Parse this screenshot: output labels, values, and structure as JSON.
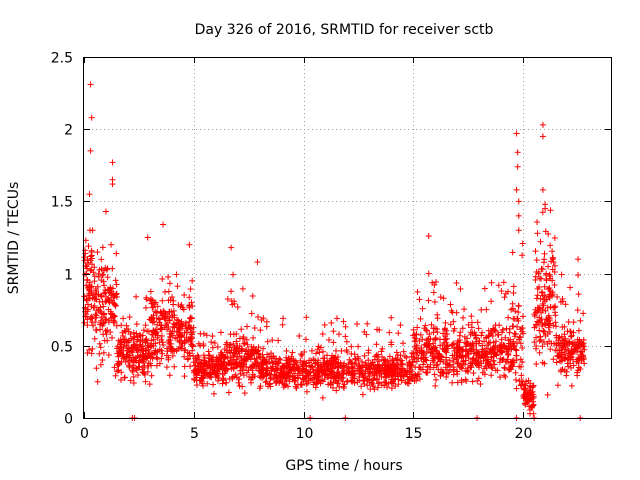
{
  "chart_data": {
    "type": "scatter",
    "title": "Day 326 of 2016, SRMTID for receiver sctb",
    "xlabel": "GPS time / hours",
    "ylabel": "SRMTID / TECUs",
    "xlim": [
      0,
      24
    ],
    "ylim": [
      0,
      2.5
    ],
    "grid": true,
    "marker": "+",
    "color": "#ff0000",
    "xticks": [
      0,
      5,
      10,
      15,
      20
    ],
    "xtick_labels": [
      "0",
      "5",
      "10",
      "15",
      "20"
    ],
    "yticks": [
      0,
      0.5,
      1,
      1.5,
      2,
      2.5
    ],
    "ytick_labels": [
      "0",
      "0.5",
      "1",
      "1.5",
      "2",
      "2.5"
    ],
    "n_points_approx": 2200,
    "x_range_of_data": [
      0.0,
      22.8
    ],
    "segments": [
      {
        "x0": 0.0,
        "x1": 0.5,
        "median": 0.9,
        "spread": 0.35,
        "max": 1.3,
        "density": 120
      },
      {
        "x0": 0.5,
        "x1": 1.5,
        "median": 0.75,
        "spread": 0.3,
        "max": 1.2,
        "density": 100
      },
      {
        "x0": 1.5,
        "x1": 3.0,
        "median": 0.45,
        "spread": 0.15,
        "max": 0.9,
        "density": 100
      },
      {
        "x0": 3.0,
        "x1": 5.0,
        "median": 0.6,
        "spread": 0.2,
        "max": 1.0,
        "density": 100
      },
      {
        "x0": 5.0,
        "x1": 6.5,
        "median": 0.35,
        "spread": 0.1,
        "max": 0.6,
        "density": 100
      },
      {
        "x0": 6.5,
        "x1": 8.0,
        "median": 0.4,
        "spread": 0.15,
        "max": 1.0,
        "density": 90
      },
      {
        "x0": 8.0,
        "x1": 15.0,
        "median": 0.33,
        "spread": 0.1,
        "max": 0.7,
        "density": 85
      },
      {
        "x0": 15.0,
        "x1": 19.5,
        "median": 0.45,
        "spread": 0.15,
        "max": 0.95,
        "density": 90
      },
      {
        "x0": 19.5,
        "x1": 20.0,
        "median": 0.55,
        "spread": 0.3,
        "max": 1.5,
        "density": 100
      },
      {
        "x0": 20.0,
        "x1": 20.5,
        "median": 0.15,
        "spread": 0.1,
        "max": 0.4,
        "density": 90
      },
      {
        "x0": 20.5,
        "x1": 21.5,
        "median": 0.8,
        "spread": 0.35,
        "max": 1.5,
        "density": 110
      },
      {
        "x0": 21.5,
        "x1": 22.8,
        "median": 0.45,
        "spread": 0.15,
        "max": 1.0,
        "density": 90
      }
    ],
    "spikes": [
      {
        "x": 0.3,
        "y": 2.31
      },
      {
        "x": 0.35,
        "y": 2.08
      },
      {
        "x": 0.3,
        "y": 1.85
      },
      {
        "x": 0.25,
        "y": 1.55
      },
      {
        "x": 1.0,
        "y": 1.43
      },
      {
        "x": 1.3,
        "y": 1.77
      },
      {
        "x": 1.3,
        "y": 1.65
      },
      {
        "x": 1.3,
        "y": 1.62
      },
      {
        "x": 3.6,
        "y": 1.34
      },
      {
        "x": 2.9,
        "y": 1.25
      },
      {
        "x": 4.8,
        "y": 1.2
      },
      {
        "x": 6.7,
        "y": 1.18
      },
      {
        "x": 7.9,
        "y": 1.08
      },
      {
        "x": 15.7,
        "y": 1.26
      },
      {
        "x": 15.7,
        "y": 1.0
      },
      {
        "x": 19.7,
        "y": 1.97
      },
      {
        "x": 19.75,
        "y": 1.84
      },
      {
        "x": 19.75,
        "y": 1.74
      },
      {
        "x": 19.7,
        "y": 1.58
      },
      {
        "x": 19.8,
        "y": 1.5
      },
      {
        "x": 19.8,
        "y": 1.4
      },
      {
        "x": 19.8,
        "y": 1.3
      },
      {
        "x": 20.9,
        "y": 2.03
      },
      {
        "x": 20.9,
        "y": 1.95
      },
      {
        "x": 20.9,
        "y": 1.58
      },
      {
        "x": 21.0,
        "y": 1.48
      },
      {
        "x": 21.0,
        "y": 1.45
      },
      {
        "x": 22.5,
        "y": 1.1
      },
      {
        "x": 22.5,
        "y": 0.99
      }
    ],
    "zero_points_x": [
      2.2,
      2.3,
      10.3,
      11.9,
      17.9,
      19.7,
      20.5,
      22.6
    ]
  }
}
